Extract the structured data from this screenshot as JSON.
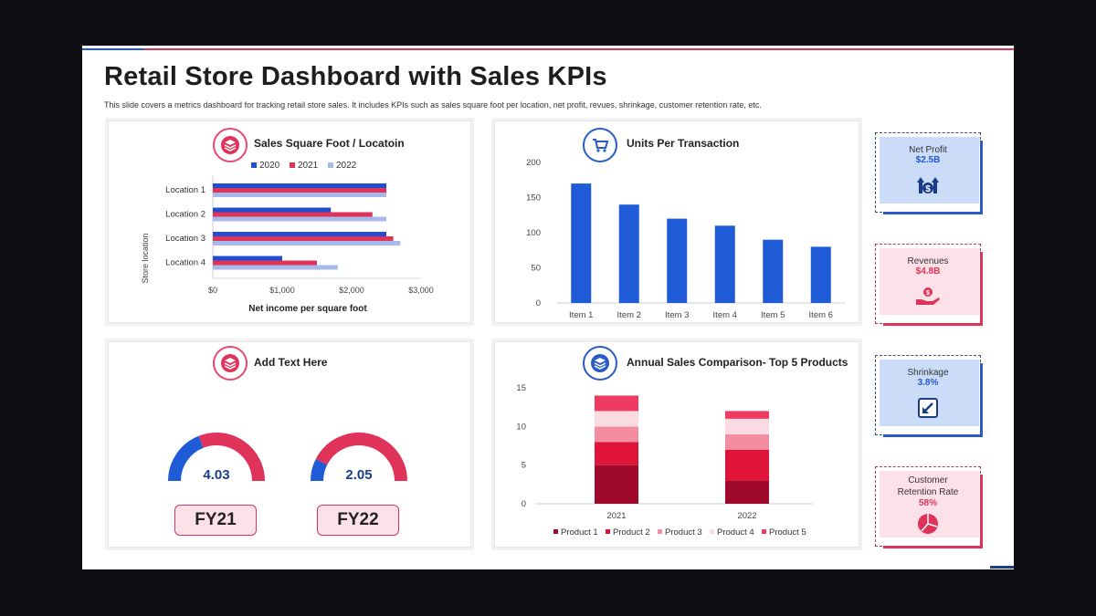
{
  "header": {
    "title": "Retail Store Dashboard with Sales KPIs",
    "subtitle": "This slide covers a metrics dashboard for tracking retail store sales. It includes KPIs such as sales square foot per location, net profit, revues, shrinkage, customer retention rate, etc."
  },
  "panels": {
    "sales_sqft": {
      "title": "Sales Square Foot / Locatoin",
      "icon": "layers-icon"
    },
    "units": {
      "title": "Units Per Transaction",
      "icon": "cart-icon"
    },
    "add_text": {
      "title": "Add Text Here",
      "icon": "layers-icon"
    },
    "annual": {
      "title": "Annual Sales Comparison- Top 5 Products",
      "icon": "layers-icon"
    }
  },
  "gauges": [
    {
      "value": "4.03",
      "fill": 0.62,
      "label": "FY21"
    },
    {
      "value": "2.05",
      "fill": 0.85,
      "label": "FY22"
    }
  ],
  "kpis": [
    {
      "label": "Net Profit",
      "value": "$2.5B",
      "icon": "dollar-growth-icon",
      "theme": "blue"
    },
    {
      "label": "Revenues",
      "value": "$4.8B",
      "icon": "hand-money-icon",
      "theme": "red"
    },
    {
      "label": "Shrinkage",
      "value": "3.8%",
      "icon": "arrow-down-left-icon",
      "theme": "blue"
    },
    {
      "label": "Customer Retention Rate",
      "value": "58%",
      "icon": "pie-icon",
      "theme": "red"
    }
  ],
  "colors": {
    "blue": "#1f5bd6",
    "red": "#e0335a",
    "light_blue": "#a7b9e8"
  },
  "chart_data": [
    {
      "type": "bar",
      "orientation": "horizontal",
      "title": "Sales Square Foot / Locatoin",
      "xlabel": "Net income per square foot",
      "ylabel": "Store location",
      "categories": [
        "Location 1",
        "Location 2",
        "Location 3",
        "Location 4"
      ],
      "series": [
        {
          "name": "2020",
          "color": "#1f4fd0",
          "values": [
            2500,
            1700,
            2500,
            1000
          ]
        },
        {
          "name": "2021",
          "color": "#e0335a",
          "values": [
            2500,
            2300,
            2600,
            1500
          ]
        },
        {
          "name": "2022",
          "color": "#a7b9e8",
          "values": [
            2500,
            2500,
            2700,
            1800
          ]
        }
      ],
      "xlim": [
        0,
        3000
      ],
      "xticks": [
        "$0",
        "$1,000",
        "$2,000",
        "$3,000"
      ],
      "legend": "top"
    },
    {
      "type": "bar",
      "title": "Units Per Transaction",
      "categories": [
        "Item 1",
        "Item 2",
        "Item 3",
        "Item 4",
        "Item 5",
        "Item 6"
      ],
      "values": [
        170,
        140,
        120,
        110,
        90,
        80
      ],
      "ylim": [
        0,
        200
      ],
      "yticks": [
        "0",
        "50",
        "100",
        "150",
        "200"
      ],
      "color": "#1f5bd6"
    },
    {
      "type": "bar",
      "stacked": true,
      "title": "Annual Sales Comparison- Top 5 Products",
      "categories": [
        "2021",
        "2022"
      ],
      "series": [
        {
          "name": "Product 1",
          "color": "#a00a2a",
          "values": [
            5,
            3
          ]
        },
        {
          "name": "Product 2",
          "color": "#e01339",
          "values": [
            3,
            4
          ]
        },
        {
          "name": "Product 3",
          "color": "#f58da2",
          "values": [
            2,
            2
          ]
        },
        {
          "name": "Product 4",
          "color": "#fbdbe2",
          "values": [
            2,
            2
          ]
        },
        {
          "name": "Product 5",
          "color": "#ef3a62",
          "values": [
            2,
            1
          ]
        }
      ],
      "ylim": [
        0,
        15
      ],
      "yticks": [
        "0",
        "5",
        "10",
        "15"
      ],
      "legend": "bottom"
    }
  ]
}
